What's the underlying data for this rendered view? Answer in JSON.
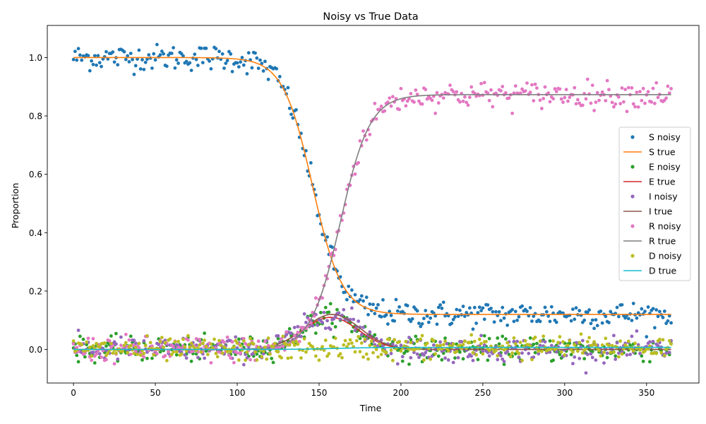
{
  "chart_data": {
    "type": "line",
    "title": "Noisy vs True Data",
    "xlabel": "Time",
    "ylabel": "Proportion",
    "xlim": [
      -16,
      382
    ],
    "ylim": [
      -0.115,
      1.11
    ],
    "xticks": [
      "0",
      "50",
      "100",
      "150",
      "200",
      "250",
      "300",
      "350"
    ],
    "yticks": [
      "0.0",
      "0.2",
      "0.4",
      "0.6",
      "0.8",
      "1.0"
    ],
    "grid": false,
    "legend_position": "center-right",
    "n_days": 366,
    "series": [
      {
        "name": "S noisy",
        "kind": "scatter",
        "color": "#1f77b4",
        "true": "S",
        "noise": 0.022
      },
      {
        "name": "S true",
        "kind": "line",
        "color": "#ff7f0e",
        "sigmoid": {
          "start": 1.0,
          "end": 0.12,
          "mid": 146,
          "width": 9
        }
      },
      {
        "name": "E noisy",
        "kind": "scatter",
        "color": "#2ca02c",
        "true": "E",
        "noise": 0.02
      },
      {
        "name": "E true",
        "kind": "line",
        "color": "#d62728",
        "bump": {
          "peak": 0.11,
          "center": 157,
          "sd": 17
        }
      },
      {
        "name": "I noisy",
        "kind": "scatter",
        "color": "#9467bd",
        "true": "I",
        "noise": 0.02
      },
      {
        "name": "I true",
        "kind": "line",
        "color": "#8c564b",
        "bump": {
          "peak": 0.12,
          "center": 158,
          "sd": 17
        }
      },
      {
        "name": "R noisy",
        "kind": "scatter",
        "color": "#e377c2",
        "true": "R",
        "noise": 0.022
      },
      {
        "name": "R true",
        "kind": "line",
        "color": "#7f7f7f",
        "sigmoid": {
          "start": 0.0,
          "end": 0.873,
          "mid": 163,
          "width": 9
        }
      },
      {
        "name": "D noisy",
        "kind": "scatter",
        "color": "#bcbd22",
        "true": "D",
        "noise": 0.02
      },
      {
        "name": "D true",
        "kind": "line",
        "color": "#17becf",
        "sigmoid": {
          "start": 0.0,
          "end": 0.007,
          "mid": 160,
          "width": 12
        }
      }
    ]
  }
}
